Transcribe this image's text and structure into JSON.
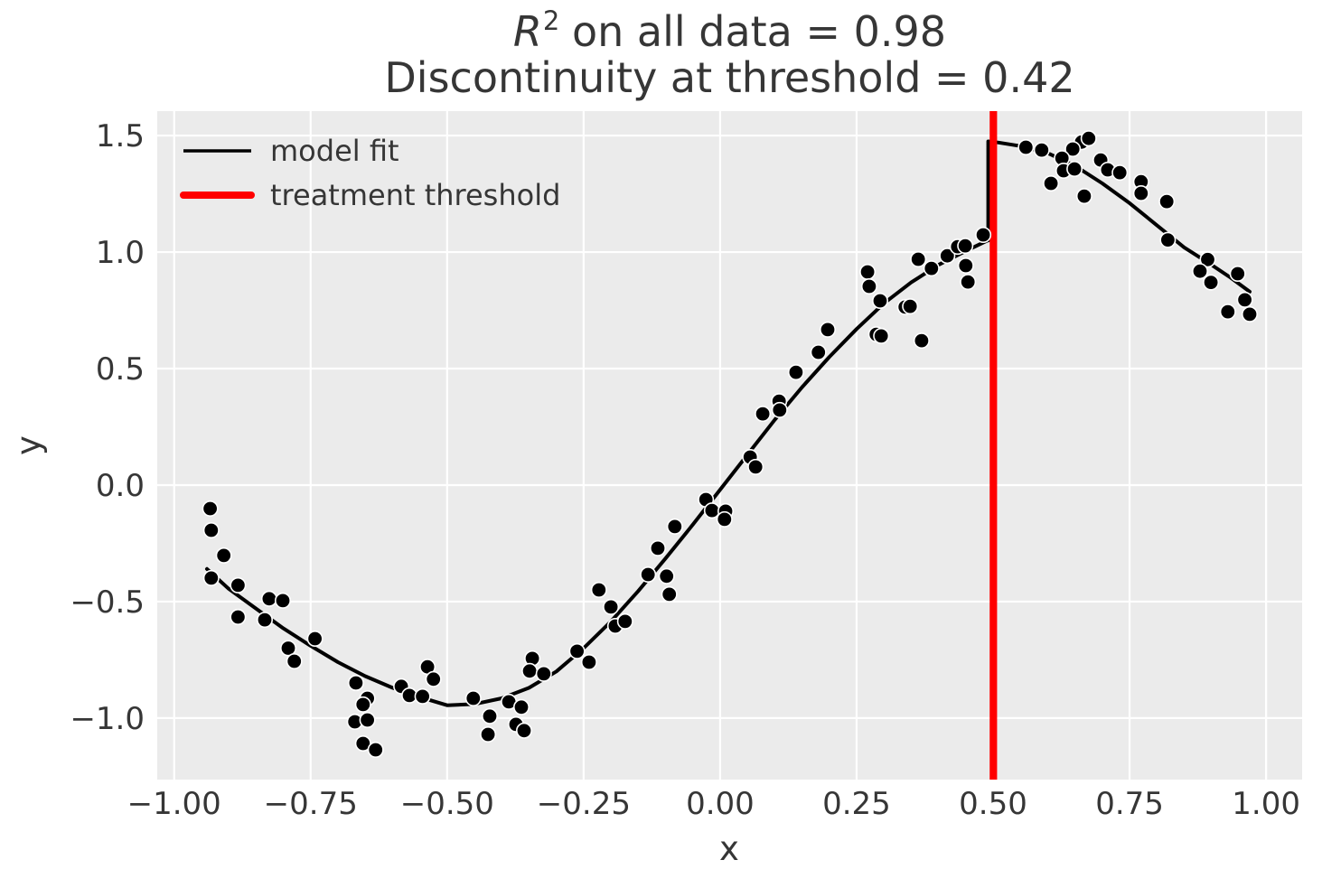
{
  "title": {
    "line1_prefix": "R",
    "line1_sup": "2",
    "line1_rest": " on all data = 0.98",
    "line2": "Discontinuity at threshold = 0.42"
  },
  "legend": {
    "items": [
      {
        "label": "model fit",
        "color": "#000000",
        "line_width": 3.5,
        "cap": "butt"
      },
      {
        "label": "treatment threshold",
        "color": "#ff0000",
        "line_width": 8,
        "cap": "round"
      }
    ]
  },
  "colors": {
    "figure_bg": "#ffffff",
    "plot_bg": "#ebebeb",
    "grid": "#ffffff",
    "text": "#363636",
    "point_fill": "#000000",
    "point_edge": "#ffffff",
    "fit_line": "#000000",
    "threshold_line": "#ff0000"
  },
  "chart_data": {
    "type": "scatter",
    "title": "R^2 on all data = 0.98\nDiscontinuity at threshold = 0.42",
    "xlabel": "x",
    "ylabel": "y",
    "r_squared": 0.98,
    "discontinuity": 0.42,
    "threshold_x": 0.5,
    "grid": true,
    "legend_position": "upper left",
    "xlim": [
      -1.031,
      1.066
    ],
    "ylim": [
      -1.264,
      1.605
    ],
    "x_ticks": {
      "values": [
        -1.0,
        -0.75,
        -0.5,
        -0.25,
        0.0,
        0.25,
        0.5,
        0.75,
        1.0
      ],
      "labels": [
        "−1.00",
        "−0.75",
        "−0.50",
        "−0.25",
        "0.00",
        "0.25",
        "0.50",
        "0.75",
        "1.00"
      ]
    },
    "y_ticks": {
      "values": [
        1.5,
        1.0,
        0.5,
        0.0,
        -0.5,
        -1.0
      ],
      "labels": [
        "1.5",
        "1.0",
        "0.5",
        "0.0",
        "−0.5",
        "−1.0"
      ]
    },
    "points": [
      [
        -0.934,
        -0.101
      ],
      [
        -0.932,
        -0.194
      ],
      [
        -0.909,
        -0.302
      ],
      [
        -0.932,
        -0.399
      ],
      [
        -0.883,
        -0.43
      ],
      [
        -0.826,
        -0.488
      ],
      [
        -0.801,
        -0.496
      ],
      [
        -0.883,
        -0.566
      ],
      [
        -0.834,
        -0.578
      ],
      [
        -0.742,
        -0.659
      ],
      [
        -0.791,
        -0.7
      ],
      [
        -0.78,
        -0.756
      ],
      [
        -0.667,
        -0.849
      ],
      [
        -0.646,
        -0.915
      ],
      [
        -0.654,
        -0.942
      ],
      [
        -0.669,
        -1.016
      ],
      [
        -0.646,
        -1.008
      ],
      [
        -0.654,
        -1.109
      ],
      [
        -0.631,
        -1.136
      ],
      [
        -0.584,
        -0.864
      ],
      [
        -0.569,
        -0.903
      ],
      [
        -0.545,
        -0.907
      ],
      [
        -0.536,
        -0.78
      ],
      [
        -0.525,
        -0.833
      ],
      [
        -0.452,
        -0.915
      ],
      [
        -0.422,
        -0.992
      ],
      [
        -0.425,
        -1.07
      ],
      [
        -0.387,
        -0.93
      ],
      [
        -0.364,
        -0.953
      ],
      [
        -0.374,
        -1.027
      ],
      [
        -0.359,
        -1.054
      ],
      [
        -0.344,
        -0.744
      ],
      [
        -0.349,
        -0.798
      ],
      [
        -0.323,
        -0.81
      ],
      [
        -0.262,
        -0.713
      ],
      [
        -0.24,
        -0.76
      ],
      [
        -0.222,
        -0.45
      ],
      [
        -0.2,
        -0.523
      ],
      [
        -0.192,
        -0.605
      ],
      [
        -0.174,
        -0.585
      ],
      [
        -0.132,
        -0.384
      ],
      [
        -0.114,
        -0.271
      ],
      [
        -0.083,
        -0.178
      ],
      [
        -0.098,
        -0.391
      ],
      [
        -0.093,
        -0.469
      ],
      [
        -0.026,
        -0.062
      ],
      [
        -0.015,
        -0.109
      ],
      [
        0.01,
        -0.112
      ],
      [
        0.008,
        -0.147
      ],
      [
        0.055,
        0.12
      ],
      [
        0.065,
        0.078
      ],
      [
        0.078,
        0.306
      ],
      [
        0.108,
        0.36
      ],
      [
        0.109,
        0.322
      ],
      [
        0.139,
        0.484
      ],
      [
        0.18,
        0.57
      ],
      [
        0.197,
        0.667
      ],
      [
        0.27,
        0.915
      ],
      [
        0.273,
        0.853
      ],
      [
        0.293,
        0.791
      ],
      [
        0.286,
        0.647
      ],
      [
        0.295,
        0.64
      ],
      [
        0.339,
        0.764
      ],
      [
        0.348,
        0.767
      ],
      [
        0.363,
        0.969
      ],
      [
        0.387,
        0.93
      ],
      [
        0.369,
        0.62
      ],
      [
        0.416,
        0.984
      ],
      [
        0.435,
        1.023
      ],
      [
        0.449,
        1.027
      ],
      [
        0.45,
        0.942
      ],
      [
        0.454,
        0.872
      ],
      [
        0.482,
        1.074
      ],
      [
        0.56,
        1.45
      ],
      [
        0.589,
        1.438
      ],
      [
        0.662,
        1.472
      ],
      [
        0.675,
        1.488
      ],
      [
        0.646,
        1.442
      ],
      [
        0.626,
        1.403
      ],
      [
        0.629,
        1.349
      ],
      [
        0.649,
        1.357
      ],
      [
        0.606,
        1.295
      ],
      [
        0.697,
        1.395
      ],
      [
        0.71,
        1.353
      ],
      [
        0.732,
        1.341
      ],
      [
        0.667,
        1.24
      ],
      [
        0.771,
        1.302
      ],
      [
        0.771,
        1.252
      ],
      [
        0.818,
        1.217
      ],
      [
        0.82,
        1.052
      ],
      [
        0.893,
        0.968
      ],
      [
        0.879,
        0.918
      ],
      [
        0.899,
        0.87
      ],
      [
        0.948,
        0.907
      ],
      [
        0.961,
        0.795
      ],
      [
        0.93,
        0.744
      ],
      [
        0.97,
        0.733
      ]
    ],
    "fit_left": [
      [
        -0.94,
        -0.36
      ],
      [
        -0.9,
        -0.445
      ],
      [
        -0.85,
        -0.53
      ],
      [
        -0.8,
        -0.615
      ],
      [
        -0.75,
        -0.69
      ],
      [
        -0.7,
        -0.76
      ],
      [
        -0.65,
        -0.82
      ],
      [
        -0.6,
        -0.87
      ],
      [
        -0.55,
        -0.91
      ],
      [
        -0.5,
        -0.945
      ],
      [
        -0.45,
        -0.94
      ],
      [
        -0.4,
        -0.915
      ],
      [
        -0.35,
        -0.87
      ],
      [
        -0.3,
        -0.8
      ],
      [
        -0.25,
        -0.7
      ],
      [
        -0.2,
        -0.585
      ],
      [
        -0.15,
        -0.455
      ],
      [
        -0.1,
        -0.315
      ],
      [
        -0.05,
        -0.17
      ],
      [
        0.0,
        -0.02
      ],
      [
        0.05,
        0.13
      ],
      [
        0.1,
        0.28
      ],
      [
        0.15,
        0.42
      ],
      [
        0.2,
        0.55
      ],
      [
        0.25,
        0.67
      ],
      [
        0.3,
        0.78
      ],
      [
        0.35,
        0.87
      ],
      [
        0.4,
        0.945
      ],
      [
        0.45,
        1.005
      ],
      [
        0.49,
        1.05
      ]
    ],
    "fit_jump": [
      [
        0.491,
        1.05
      ],
      [
        0.491,
        1.475
      ]
    ],
    "fit_right": [
      [
        0.51,
        1.47
      ],
      [
        0.55,
        1.455
      ],
      [
        0.6,
        1.425
      ],
      [
        0.65,
        1.37
      ],
      [
        0.7,
        1.295
      ],
      [
        0.75,
        1.21
      ],
      [
        0.8,
        1.115
      ],
      [
        0.85,
        1.02
      ],
      [
        0.9,
        0.945
      ],
      [
        0.935,
        0.89
      ],
      [
        0.97,
        0.83
      ]
    ]
  }
}
